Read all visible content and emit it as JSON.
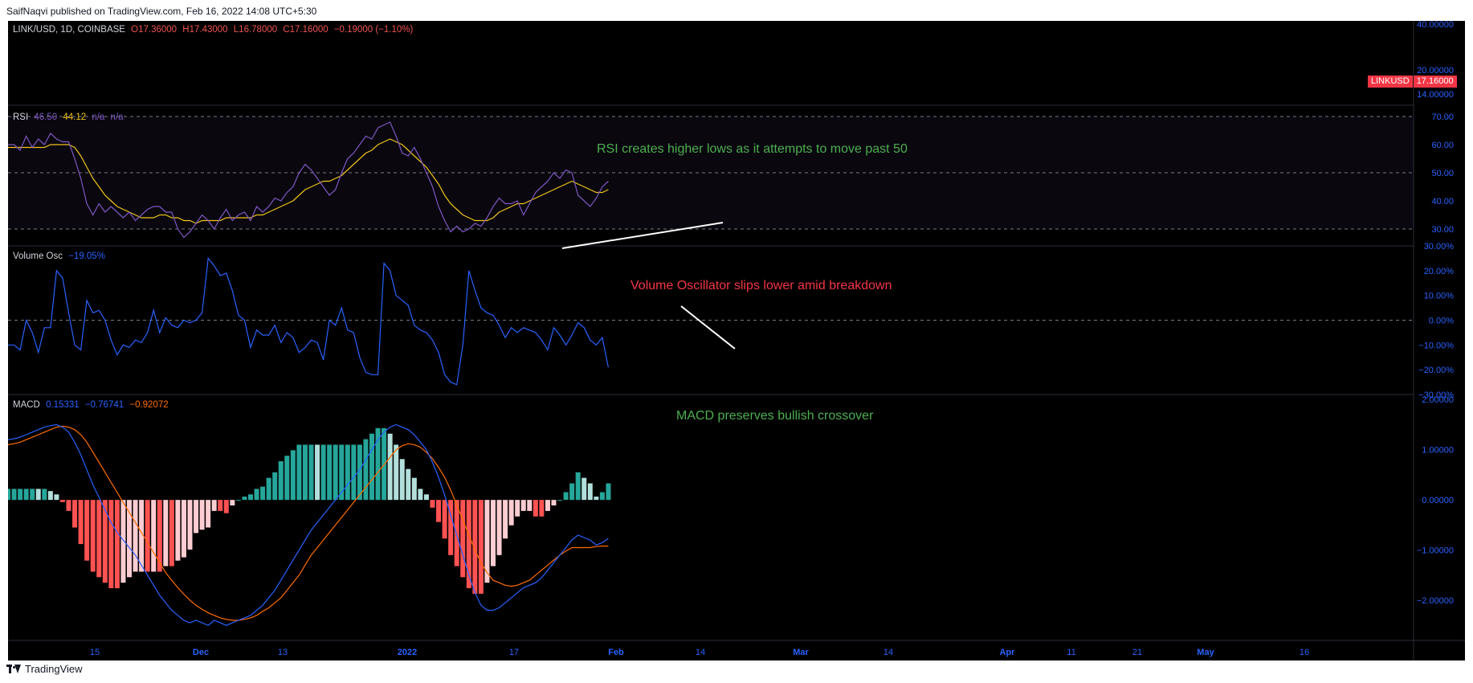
{
  "header": {
    "credit": "SaifNaqvi published on TradingView.com, Feb 16, 2022 14:08 UTC+5:30"
  },
  "footer": {
    "logo_text": "TradingView"
  },
  "main_legend": {
    "symbol": "LINK/USD, 1D, COINBASE",
    "open": "O17.36000",
    "high": "H17.43000",
    "low": "L16.78000",
    "close": "C17.16000",
    "change": "−0.19000 (−1.10%)"
  },
  "price_badge": {
    "label": "LINKUSD",
    "value": "17.16000"
  },
  "annotations": {
    "rsi": "RSI creates higher lows as it attempts to move past 50",
    "vol": "Volume Oscillator slips lower amid breakdown",
    "macd": "MACD preserves bullish crossover"
  },
  "colors": {
    "background": "#000000",
    "rsi_line": "#7e57c2",
    "rsi_ma": "#f0c419",
    "vol_line": "#2962ff",
    "macd_line": "#2962ff",
    "signal_line": "#ff6d00",
    "hist_pos_strong": "#26a69a",
    "hist_pos_weak": "#b2dfdb",
    "hist_neg_strong": "#ff5252",
    "hist_neg_weak": "#ffcdd2",
    "annot_green": "#4caf50",
    "annot_red": "#f23645",
    "axis_text": "#2962ff"
  },
  "chart_data": [
    {
      "type": "line",
      "title": "LINK/USD, 1D, COINBASE",
      "y_ticks": [
        "40.00000",
        "20.00000",
        "14.00000"
      ],
      "last_value": 17.16,
      "scale": "log"
    },
    {
      "type": "line",
      "title": "RSI",
      "legend_values": [
        "46.50",
        "44.12",
        "n/a",
        "n/a"
      ],
      "legend_label": "RSI",
      "ylim": [
        24,
        74
      ],
      "y_ticks": [
        "70.00",
        "60.00",
        "50.00",
        "40.00",
        "30.00"
      ],
      "bands": [
        70,
        50,
        30
      ],
      "series": [
        {
          "values": [
            60,
            60,
            58,
            63,
            59,
            62,
            60,
            64,
            62,
            61,
            61,
            55,
            48,
            39,
            35,
            39,
            36,
            38,
            36,
            34,
            36,
            33,
            35,
            37,
            38,
            38,
            36,
            36,
            30,
            27,
            29,
            32,
            35,
            33,
            30,
            34,
            37,
            33,
            35,
            36,
            33,
            38,
            36,
            38,
            41,
            40,
            43,
            45,
            50,
            53,
            51,
            48,
            45,
            42,
            44,
            50,
            55,
            57,
            60,
            63,
            62,
            66,
            67,
            68,
            63,
            57,
            56,
            59,
            55,
            50,
            45,
            38,
            33,
            29,
            31,
            29,
            30,
            32,
            31,
            34,
            38,
            41,
            39,
            39,
            40,
            35,
            39,
            43,
            45,
            47,
            50,
            48,
            51,
            50,
            42,
            40,
            38,
            41,
            45,
            47
          ]
        },
        {
          "values": [
            59,
            59,
            59,
            59,
            59,
            59,
            59,
            60,
            60,
            60,
            60,
            59,
            56,
            52,
            48,
            45,
            42,
            40,
            38,
            37,
            36,
            35,
            34,
            34,
            34,
            35,
            35,
            34,
            34,
            33,
            33,
            32,
            33,
            33,
            33,
            33,
            34,
            34,
            34,
            34,
            34,
            35,
            35,
            36,
            37,
            38,
            39,
            40,
            42,
            44,
            45,
            46,
            47,
            47,
            48,
            49,
            51,
            53,
            55,
            57,
            58,
            60,
            61,
            62,
            61,
            60,
            58,
            56,
            54,
            52,
            49,
            46,
            42,
            39,
            37,
            35,
            34,
            33,
            33,
            33,
            34,
            36,
            37,
            38,
            39,
            39,
            40,
            41,
            42,
            43,
            44,
            45,
            46,
            47,
            46,
            45,
            44,
            43,
            43,
            44
          ]
        }
      ]
    },
    {
      "type": "line",
      "title": "Volume Osc",
      "legend_values": [
        "−19.05%"
      ],
      "ylim": [
        -30,
        30
      ],
      "y_ticks": [
        "30.00%",
        "20.00%",
        "10.00%",
        "0.00%",
        "−10.00%",
        "−20.00%",
        "−30.00%"
      ],
      "series": [
        {
          "name": "Volume Osc",
          "values": [
            -10,
            -10,
            -12,
            0,
            -5,
            -13,
            -3,
            -3,
            20,
            17,
            3,
            -10,
            -12,
            8,
            3,
            4,
            0,
            -8,
            -14,
            -10,
            -11,
            -8,
            -9,
            -5,
            4,
            -5,
            1,
            -2,
            -3,
            0,
            -1,
            0,
            3,
            25,
            22,
            18,
            19,
            12,
            2,
            0,
            -11,
            -4,
            -6,
            -6,
            -2,
            -9,
            -5,
            -7,
            -13,
            -11,
            -8,
            -9,
            -16,
            0,
            -2,
            5,
            -4,
            -5,
            -15,
            -21,
            -22,
            -22,
            23,
            20,
            10,
            8,
            6,
            -2,
            -4,
            -5,
            -8,
            -13,
            -22,
            -25,
            -26,
            -10,
            20,
            12,
            5,
            3,
            2,
            -2,
            -7,
            -3,
            -5,
            -3,
            -4,
            -5,
            -8,
            -12,
            -3,
            -6,
            -10,
            -6,
            -1,
            -3,
            -8,
            -10,
            -7,
            -19
          ]
        }
      ]
    },
    {
      "type": "bar",
      "title": "MACD",
      "legend_values": [
        "0.15331",
        "−0.76741",
        "−0.92072"
      ],
      "ylim": [
        -2.8,
        2.1
      ],
      "y_ticks": [
        "2.00000",
        "1.00000",
        "0.00000",
        "−1.00000",
        "−2.00000"
      ],
      "series": [
        {
          "name": "MACD",
          "values": [
            1.2,
            1.22,
            1.25,
            1.3,
            1.35,
            1.4,
            1.45,
            1.48,
            1.5,
            1.45,
            1.35,
            1.15,
            0.9,
            0.6,
            0.3,
            0.05,
            -0.2,
            -0.45,
            -0.65,
            -0.8,
            -0.95,
            -1.1,
            -1.3,
            -1.5,
            -1.7,
            -1.9,
            -2.05,
            -2.2,
            -2.3,
            -2.4,
            -2.45,
            -2.4,
            -2.45,
            -2.5,
            -2.4,
            -2.45,
            -2.5,
            -2.45,
            -2.4,
            -2.35,
            -2.3,
            -2.2,
            -2.1,
            -1.95,
            -1.8,
            -1.6,
            -1.4,
            -1.2,
            -1.0,
            -0.8,
            -0.6,
            -0.45,
            -0.3,
            -0.15,
            0.0,
            0.15,
            0.3,
            0.45,
            0.6,
            0.8,
            1.0,
            1.2,
            1.35,
            1.45,
            1.5,
            1.45,
            1.4,
            1.3,
            1.15,
            1.0,
            0.75,
            0.45,
            0.1,
            -0.3,
            -0.7,
            -1.1,
            -1.5,
            -1.85,
            -2.1,
            -2.2,
            -2.2,
            -2.15,
            -2.05,
            -1.95,
            -1.85,
            -1.75,
            -1.7,
            -1.65,
            -1.55,
            -1.4,
            -1.25,
            -1.1,
            -0.95,
            -0.8,
            -0.7,
            -0.75,
            -0.8,
            -0.9,
            -0.85,
            -0.77
          ]
        },
        {
          "name": "Signal",
          "values": [
            1.1,
            1.12,
            1.15,
            1.2,
            1.25,
            1.3,
            1.35,
            1.4,
            1.45,
            1.47,
            1.45,
            1.4,
            1.3,
            1.15,
            0.95,
            0.75,
            0.55,
            0.35,
            0.15,
            -0.05,
            -0.25,
            -0.45,
            -0.65,
            -0.85,
            -1.05,
            -1.25,
            -1.45,
            -1.6,
            -1.75,
            -1.88,
            -2.0,
            -2.1,
            -2.18,
            -2.25,
            -2.3,
            -2.35,
            -2.38,
            -2.4,
            -2.4,
            -2.38,
            -2.35,
            -2.3,
            -2.22,
            -2.15,
            -2.05,
            -1.95,
            -1.8,
            -1.65,
            -1.5,
            -1.3,
            -1.1,
            -0.95,
            -0.8,
            -0.65,
            -0.5,
            -0.35,
            -0.2,
            -0.05,
            0.1,
            0.25,
            0.4,
            0.55,
            0.7,
            0.85,
            1.0,
            1.08,
            1.12,
            1.1,
            1.05,
            0.95,
            0.82,
            0.65,
            0.45,
            0.2,
            -0.1,
            -0.4,
            -0.7,
            -1.0,
            -1.25,
            -1.45,
            -1.6,
            -1.65,
            -1.7,
            -1.72,
            -1.7,
            -1.65,
            -1.6,
            -1.5,
            -1.4,
            -1.3,
            -1.2,
            -1.1,
            -1.02,
            -0.95,
            -0.95,
            -0.95,
            -0.95,
            -0.93,
            -0.92,
            -0.92
          ]
        }
      ]
    }
  ],
  "time_axis": {
    "labels": [
      "15",
      "Dec",
      "13",
      "2022",
      "17",
      "Feb",
      "14",
      "Mar",
      "14",
      "Apr",
      "11",
      "21",
      "May",
      "16"
    ],
    "bold": [
      "Dec",
      "2022",
      "Feb",
      "Mar",
      "Apr",
      "May"
    ]
  }
}
